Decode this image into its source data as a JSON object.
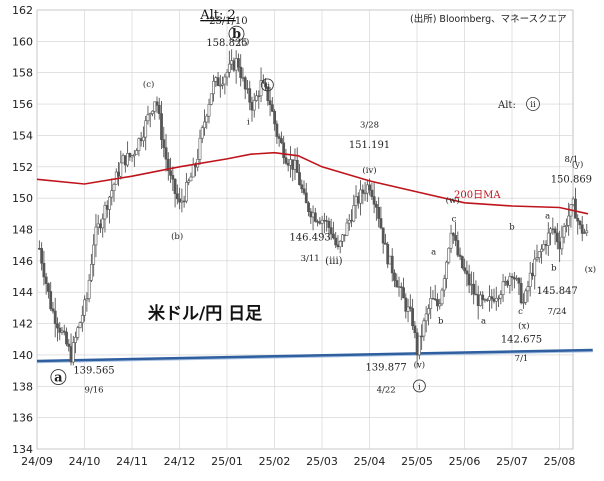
{
  "chart_data": {
    "type": "candlestick",
    "title": "Alt: 2",
    "source": "(出所) Bloomberg、マネースクエア",
    "subtitle": "米ドル/円 日足",
    "alt_label": "Alt:",
    "alt_label_circled": "ii",
    "ylim": [
      134,
      162
    ],
    "y_ticks": [
      134,
      136,
      138,
      140,
      142,
      144,
      146,
      148,
      150,
      152,
      154,
      156,
      158,
      160,
      162
    ],
    "x_ticks": [
      "24/09",
      "24/10",
      "24/11",
      "24/12",
      "25/01",
      "25/02",
      "25/03",
      "25/04",
      "25/05",
      "25/06",
      "25/07",
      "25/08"
    ],
    "x_range_months": [
      0,
      11.7
    ],
    "grid": true,
    "price_path": [
      [
        0.05,
        146.8
      ],
      [
        0.3,
        143.0
      ],
      [
        0.55,
        141.2
      ],
      [
        0.72,
        139.9
      ],
      [
        0.85,
        141.5
      ],
      [
        1.05,
        143.6
      ],
      [
        1.2,
        147.4
      ],
      [
        1.5,
        149.9
      ],
      [
        1.8,
        152.4
      ],
      [
        2.0,
        152.7
      ],
      [
        2.25,
        154.4
      ],
      [
        2.5,
        156.5
      ],
      [
        2.65,
        153.5
      ],
      [
        2.8,
        151.3
      ],
      [
        3.0,
        149.5
      ],
      [
        3.15,
        150.6
      ],
      [
        3.35,
        152.2
      ],
      [
        3.55,
        155.3
      ],
      [
        3.7,
        157.2
      ],
      [
        3.85,
        157.5
      ],
      [
        4.05,
        158.2
      ],
      [
        4.22,
        158.8
      ],
      [
        4.38,
        156.9
      ],
      [
        4.55,
        155.8
      ],
      [
        4.72,
        157.3
      ],
      [
        4.9,
        156.2
      ],
      [
        5.05,
        154.1
      ],
      [
        5.25,
        152.6
      ],
      [
        5.45,
        151.9
      ],
      [
        5.65,
        149.6
      ],
      [
        5.85,
        148.9
      ],
      [
        6.05,
        148.6
      ],
      [
        6.2,
        147.9
      ],
      [
        6.33,
        146.6
      ],
      [
        6.5,
        148.0
      ],
      [
        6.7,
        149.6
      ],
      [
        6.9,
        150.6
      ],
      [
        7.0,
        150.9
      ],
      [
        7.15,
        149.6
      ],
      [
        7.35,
        146.5
      ],
      [
        7.55,
        144.9
      ],
      [
        7.75,
        143.2
      ],
      [
        7.9,
        142.3
      ],
      [
        8.0,
        140.2
      ],
      [
        8.15,
        142.0
      ],
      [
        8.3,
        143.5
      ],
      [
        8.45,
        143.1
      ],
      [
        8.6,
        145.6
      ],
      [
        8.72,
        148.2
      ],
      [
        8.88,
        146.1
      ],
      [
        9.05,
        144.9
      ],
      [
        9.25,
        143.6
      ],
      [
        9.45,
        143.1
      ],
      [
        9.65,
        143.9
      ],
      [
        9.85,
        144.4
      ],
      [
        10.0,
        145.4
      ],
      [
        10.15,
        144.1
      ],
      [
        10.25,
        143.2
      ],
      [
        10.4,
        145.2
      ],
      [
        10.55,
        146.2
      ],
      [
        10.7,
        147.2
      ],
      [
        10.85,
        148.1
      ],
      [
        11.0,
        147.1
      ],
      [
        11.15,
        148.6
      ],
      [
        11.3,
        149.6
      ],
      [
        11.42,
        148.1
      ],
      [
        11.6,
        147.6
      ]
    ],
    "series": [
      {
        "name": "200日MA",
        "color": "#c0141c",
        "points": [
          [
            0,
            151.2
          ],
          [
            1,
            150.9
          ],
          [
            2,
            151.4
          ],
          [
            3,
            152.0
          ],
          [
            4,
            152.5
          ],
          [
            4.5,
            152.8
          ],
          [
            5,
            152.9
          ],
          [
            5.5,
            152.7
          ],
          [
            6,
            152.0
          ],
          [
            7,
            151.1
          ],
          [
            8,
            150.4
          ],
          [
            9,
            149.7
          ],
          [
            10,
            149.5
          ],
          [
            11,
            149.4
          ],
          [
            11.6,
            149.0
          ]
        ]
      }
    ],
    "trendline": {
      "color": "#2f5f9e",
      "points": [
        [
          0,
          139.6
        ],
        [
          11.7,
          140.3
        ]
      ]
    },
    "annotations": [
      {
        "text": "(c)",
        "x": 2.35,
        "y": 157.1
      },
      {
        "text": "(b)",
        "x": 2.95,
        "y": 147.4
      },
      {
        "text": "'25/1/10",
        "x": 4.0,
        "y": 161.1
      },
      {
        "text": "158.825",
        "x": 4.0,
        "y": 159.7
      },
      {
        "text": "(c)",
        "x": 4.35,
        "y": 159.8
      },
      {
        "text": "ⅱ",
        "x": 4.85,
        "y": 157.0,
        "circled": true
      },
      {
        "text": "ⅰ",
        "x": 4.45,
        "y": 154.7
      },
      {
        "text": "3/28",
        "x": 7.0,
        "y": 154.5
      },
      {
        "text": "151.191",
        "x": 7.0,
        "y": 153.2
      },
      {
        "text": "(iv)",
        "x": 7.0,
        "y": 151.6
      },
      {
        "text": "146.493",
        "x": 5.75,
        "y": 147.3
      },
      {
        "text": "3/11",
        "x": 5.75,
        "y": 146.0
      },
      {
        "text": "(iii)",
        "x": 6.25,
        "y": 145.8
      },
      {
        "text": "(w)",
        "x": 8.75,
        "y": 149.7
      },
      {
        "text": "c",
        "x": 8.78,
        "y": 148.5
      },
      {
        "text": "a",
        "x": 8.35,
        "y": 146.4
      },
      {
        "text": "b",
        "x": 8.5,
        "y": 142.0
      },
      {
        "text": "a",
        "x": 9.4,
        "y": 142.0
      },
      {
        "text": "b",
        "x": 10.0,
        "y": 148.0
      },
      {
        "text": "c",
        "x": 10.18,
        "y": 142.6
      },
      {
        "text": "(x)",
        "x": 10.25,
        "y": 141.7
      },
      {
        "text": "a",
        "x": 10.75,
        "y": 148.7
      },
      {
        "text": "b",
        "x": 10.88,
        "y": 145.4
      },
      {
        "text": "8/1",
        "x": 11.25,
        "y": 152.3
      },
      {
        "text": "150.869",
        "x": 11.25,
        "y": 151.0
      },
      {
        "text": "(y)",
        "x": 11.38,
        "y": 152.0
      },
      {
        "text": "(x)",
        "x": 11.65,
        "y": 145.3
      },
      {
        "text": "145.847",
        "x": 10.95,
        "y": 143.9
      },
      {
        "text": "7/24",
        "x": 10.95,
        "y": 142.6
      },
      {
        "text": "142.675",
        "x": 10.2,
        "y": 140.8
      },
      {
        "text": "7/1",
        "x": 10.2,
        "y": 139.6
      },
      {
        "text": "139.877",
        "x": 7.35,
        "y": 139.0
      },
      {
        "text": "4/22",
        "x": 7.35,
        "y": 137.6
      },
      {
        "text": "(v)",
        "x": 8.05,
        "y": 139.2
      },
      {
        "text": "ⅰ",
        "x": 8.05,
        "y": 137.8,
        "circled": true
      },
      {
        "text": "139.565",
        "x": 1.2,
        "y": 138.8
      },
      {
        "text": "9/16",
        "x": 1.2,
        "y": 137.6
      },
      {
        "text": "a",
        "x": 0.45,
        "y": 138.3,
        "circled": true,
        "large": true
      },
      {
        "text": "b",
        "x": 4.2,
        "y": 160.2,
        "circled": true,
        "large": true
      }
    ]
  }
}
